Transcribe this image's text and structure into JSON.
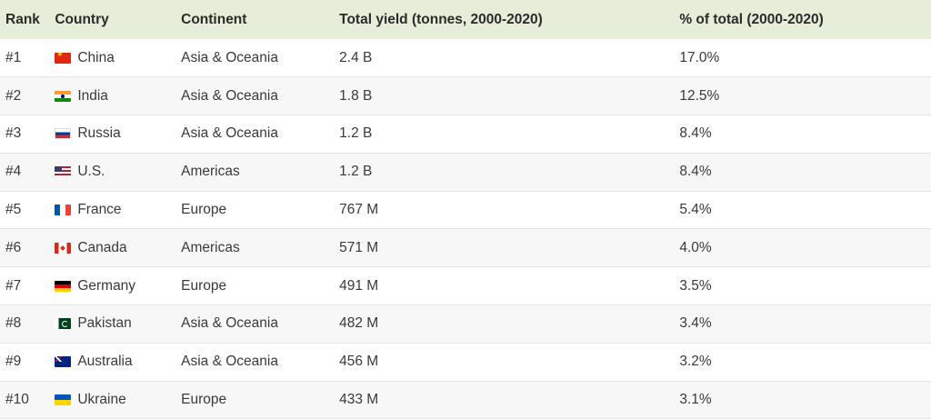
{
  "chart_data": {
    "type": "table",
    "columns": [
      "Rank",
      "Country",
      "Continent",
      "Total yield (tonnes, 2000-2020)",
      "% of total (2000-2020)"
    ],
    "rows": [
      {
        "rank": "#1",
        "country": "China",
        "flag": "flag-china",
        "continent": "Asia & Oceania",
        "yield": "2.4 B",
        "pct": "17.0%"
      },
      {
        "rank": "#2",
        "country": "India",
        "flag": "flag-india",
        "continent": "Asia & Oceania",
        "yield": "1.8 B",
        "pct": "12.5%"
      },
      {
        "rank": "#3",
        "country": "Russia",
        "flag": "flag-russia",
        "continent": "Asia & Oceania",
        "yield": "1.2 B",
        "pct": "8.4%"
      },
      {
        "rank": "#4",
        "country": "U.S.",
        "flag": "flag-us",
        "continent": "Americas",
        "yield": "1.2 B",
        "pct": "8.4%"
      },
      {
        "rank": "#5",
        "country": "France",
        "flag": "flag-france",
        "continent": "Europe",
        "yield": "767 M",
        "pct": "5.4%"
      },
      {
        "rank": "#6",
        "country": "Canada",
        "flag": "flag-canada",
        "continent": "Americas",
        "yield": "571 M",
        "pct": "4.0%"
      },
      {
        "rank": "#7",
        "country": "Germany",
        "flag": "flag-germany",
        "continent": "Europe",
        "yield": "491 M",
        "pct": "3.5%"
      },
      {
        "rank": "#8",
        "country": "Pakistan",
        "flag": "flag-pakistan",
        "continent": "Asia & Oceania",
        "yield": "482 M",
        "pct": "3.4%"
      },
      {
        "rank": "#9",
        "country": "Australia",
        "flag": "flag-australia",
        "continent": "Asia & Oceania",
        "yield": "456 M",
        "pct": "3.2%"
      },
      {
        "rank": "#10",
        "country": "Ukraine",
        "flag": "flag-ukraine",
        "continent": "Europe",
        "yield": "433 M",
        "pct": "3.1%"
      }
    ]
  }
}
